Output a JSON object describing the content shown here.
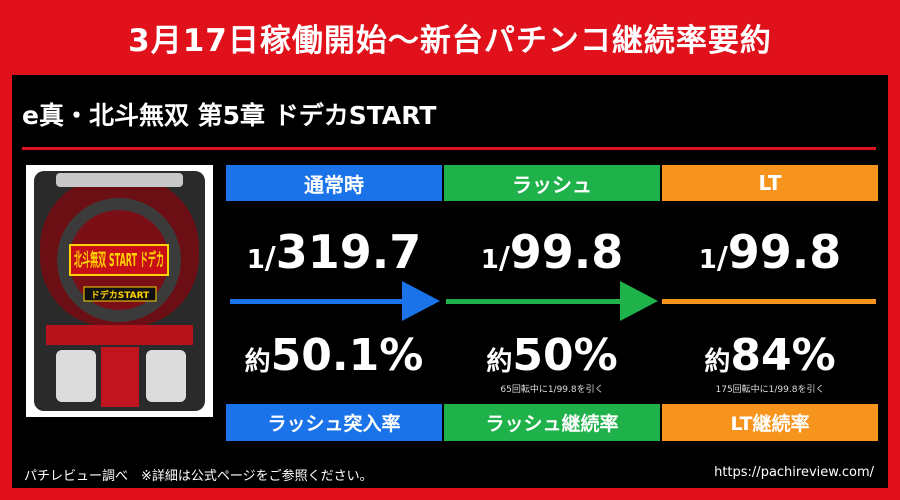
{
  "header": {
    "title": "3月17日稼働開始〜新台パチンコ継続率要約"
  },
  "machine": {
    "title": "e真・北斗無双 第5章 ドデカSTART",
    "image_text": "北斗無双 START ドデカ",
    "image_sub": "ドデカSTART"
  },
  "columns": [
    {
      "label": "通常時",
      "prob_prefix": "1",
      "prob_denominator": "319.7",
      "rate_prefix": "約",
      "rate_value": "50.1%",
      "note": "",
      "footer": "ラッシュ突入率",
      "color": "#1a73e8"
    },
    {
      "label": "ラッシュ",
      "prob_prefix": "1",
      "prob_denominator": "99.8",
      "rate_prefix": "約",
      "rate_value": "50%",
      "note": "65回転中に1/99.8を引く",
      "footer": "ラッシュ継続率",
      "color": "#1fb24a"
    },
    {
      "label": "LT",
      "prob_prefix": "1",
      "prob_denominator": "99.8",
      "rate_prefix": "約",
      "rate_value": "84%",
      "note": "175回転中に1/99.8を引く",
      "footer": "LT継続率",
      "color": "#f7941d"
    }
  ],
  "footer": {
    "source": "パチレビュー調べ　※詳細は公式ページをご参照ください。",
    "url": "https://pachireview.com/"
  },
  "colors": {
    "brand_red": "#e0111b",
    "panel_bg": "#000000"
  }
}
